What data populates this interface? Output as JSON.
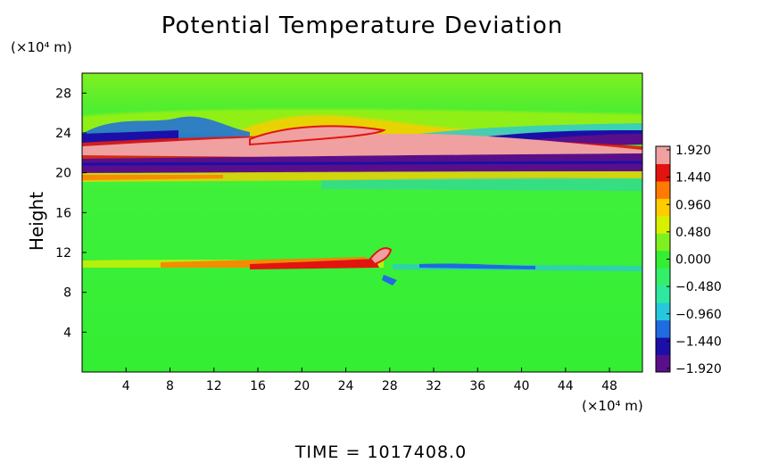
{
  "chart_data": {
    "type": "heatmap",
    "title": "Potential Temperature Deviation",
    "ylabel": "Height",
    "xunit": "(×10⁴ m)",
    "yunit": "(×10⁴ m)",
    "footer": "TIME = 1017408.0",
    "xlim": [
      0,
      51
    ],
    "ylim": [
      0,
      30
    ],
    "x_ticks": [
      "4",
      "8",
      "12",
      "16",
      "20",
      "24",
      "28",
      "32",
      "36",
      "40",
      "44",
      "48"
    ],
    "y_ticks": [
      "4",
      "8",
      "12",
      "16",
      "20",
      "24",
      "28"
    ],
    "colorbar_labels": [
      "1.920",
      "1.440",
      "0.960",
      "0.480",
      "0.000",
      "−0.480",
      "−0.960",
      "−1.440",
      "−1.920"
    ],
    "colorbar_range": [
      -1.92,
      1.92
    ],
    "colors": [
      "#5a0f8a",
      "#1b0fa8",
      "#1f6be0",
      "#27c8dd",
      "#2ee8a0",
      "#33f06a",
      "#33ee33",
      "#7ef020",
      "#d6f000",
      "#ffcc00",
      "#ff7a00",
      "#e3140f",
      "#f0a0a0"
    ]
  }
}
